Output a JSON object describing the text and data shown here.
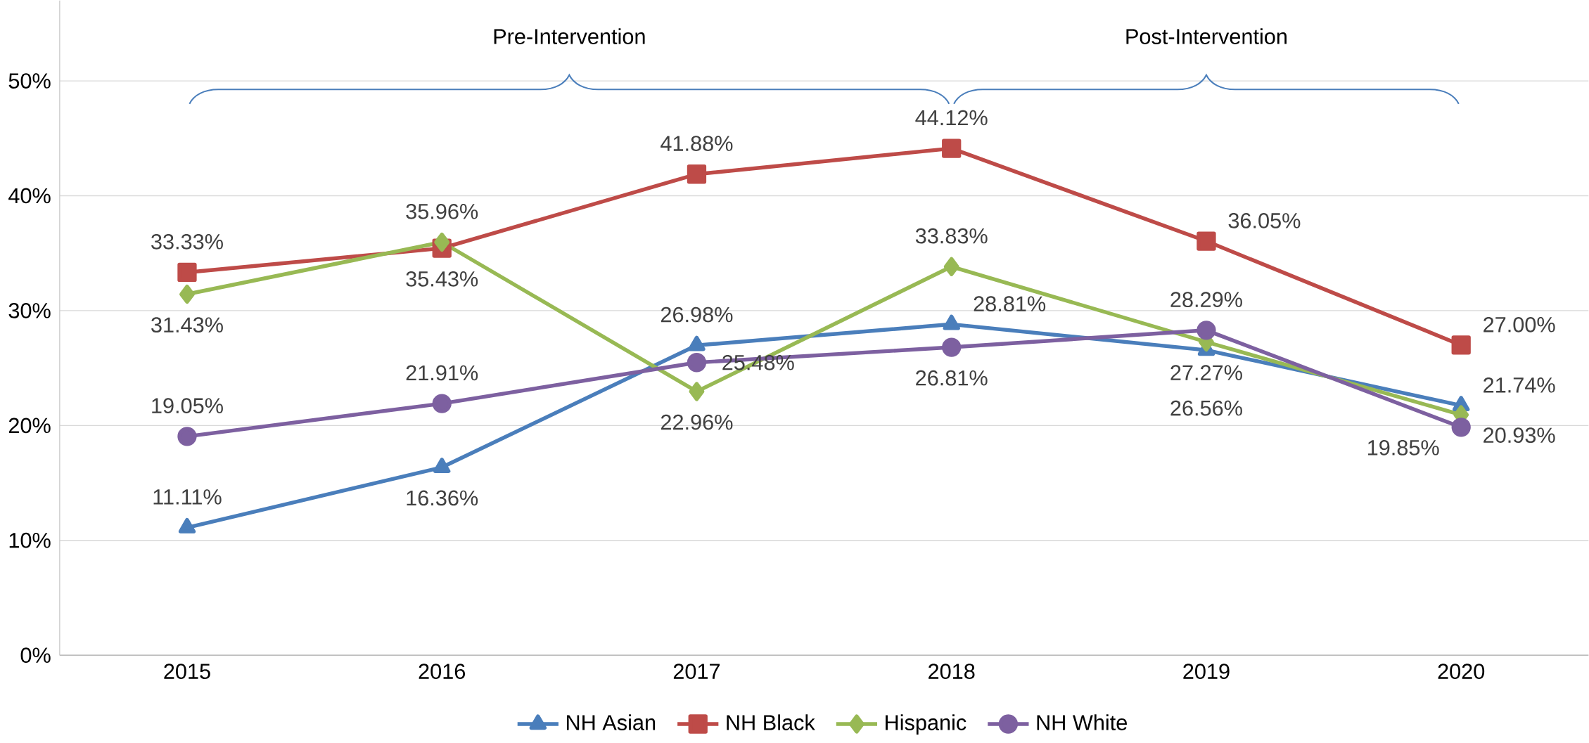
{
  "chart_data": {
    "type": "line",
    "categories": [
      "2015",
      "2016",
      "2017",
      "2018",
      "2019",
      "2020"
    ],
    "series": [
      {
        "name": "NH Asian",
        "color": "#4a7ebb",
        "marker": "triangle",
        "values": [
          11.11,
          16.36,
          26.98,
          28.81,
          26.56,
          21.74
        ],
        "value_labels": [
          "11.11%",
          "16.36%",
          "26.98%",
          "28.81%",
          "26.56%",
          "21.74%"
        ]
      },
      {
        "name": "NH Black",
        "color": "#be4b48",
        "marker": "square",
        "values": [
          33.33,
          35.43,
          41.88,
          44.12,
          36.05,
          27.0
        ],
        "value_labels": [
          "33.33%",
          "35.43%",
          "41.88%",
          "44.12%",
          "36.05%",
          "27.00%"
        ]
      },
      {
        "name": "Hispanic",
        "color": "#98b954",
        "marker": "diamond",
        "values": [
          31.43,
          35.96,
          22.96,
          33.83,
          27.27,
          20.93
        ],
        "value_labels": [
          "31.43%",
          "35.96%",
          "22.96%",
          "33.83%",
          "27.27%",
          "20.93%"
        ]
      },
      {
        "name": "NH White",
        "color": "#7d60a0",
        "marker": "circle",
        "values": [
          19.05,
          21.91,
          25.48,
          26.81,
          28.29,
          19.85
        ],
        "value_labels": [
          "19.05%",
          "21.91%",
          "25.48%",
          "26.81%",
          "28.29%",
          "19.85%"
        ]
      }
    ],
    "ylim": [
      0,
      57
    ],
    "yticks": [
      {
        "value": 0,
        "label": "0%"
      },
      {
        "value": 10,
        "label": "10%"
      },
      {
        "value": 20,
        "label": "20%"
      },
      {
        "value": 30,
        "label": "30%"
      },
      {
        "value": 40,
        "label": "40%"
      },
      {
        "value": 50,
        "label": "50%"
      }
    ],
    "annotations": [
      "Pre-Intervention",
      "Post-Intervention"
    ],
    "grid": "y",
    "legend": "bottom"
  }
}
